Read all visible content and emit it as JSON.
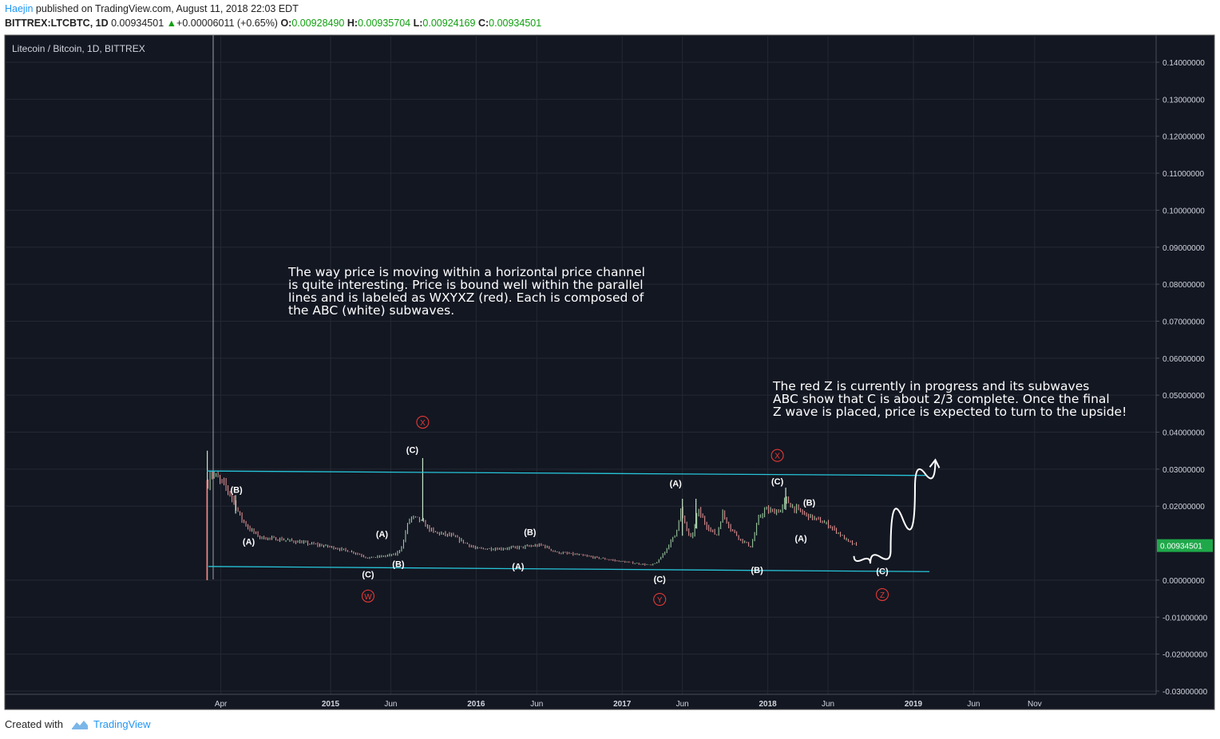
{
  "header": {
    "author": "Haejin",
    "published_text": "published on TradingView.com, August 11, 2018 22:03 EDT",
    "symbol": "BITTREX:LTCBTC, 1D",
    "last": "0.00934501",
    "change_arrow": "▲",
    "change": "+0.00006011 (+0.65%)",
    "o_label": "O:",
    "o": "0.00928490",
    "h_label": "H:",
    "h": "0.00935704",
    "l_label": "L:",
    "l": "0.00924169",
    "c_label": "C:",
    "c": "0.00934501"
  },
  "footer": {
    "created_with": "Created with",
    "brand": "TradingView"
  },
  "colors": {
    "background": "#131722",
    "channel": "#26c6da",
    "wave_red": "#e53935",
    "wave_white": "#ffffff",
    "price_tag": "#1fa84a",
    "up_candle": "#a5d6a7",
    "down_candle": "#ef9a9a"
  },
  "chart_data": {
    "type": "candlestick",
    "title": "Litecoin / Bitcoin, 1D, BITTREX",
    "ylim": [
      -0.03,
      0.145
    ],
    "y_ticks": [
      "0.14000000",
      "0.13000000",
      "0.12000000",
      "0.11000000",
      "0.10000000",
      "0.09000000",
      "0.08000000",
      "0.07000000",
      "0.06000000",
      "0.05000000",
      "0.04000000",
      "0.03000000",
      "0.02000000",
      "0.00000000",
      "-0.01000000",
      "-0.02000000",
      "-0.03000000"
    ],
    "y_tick_values": [
      0.14,
      0.13,
      0.12,
      0.11,
      0.1,
      0.09,
      0.08,
      0.07,
      0.06,
      0.05,
      0.04,
      0.03,
      0.02,
      0.0,
      -0.01,
      -0.02,
      -0.03
    ],
    "x_ticks": [
      {
        "label": "Apr",
        "date": "2014-04-01"
      },
      {
        "label": "2015",
        "date": "2015-01-01"
      },
      {
        "label": "Jun",
        "date": "2015-06-01"
      },
      {
        "label": "2016",
        "date": "2016-01-01"
      },
      {
        "label": "Jun",
        "date": "2016-06-01"
      },
      {
        "label": "2017",
        "date": "2017-01-01"
      },
      {
        "label": "Jun",
        "date": "2017-06-01"
      },
      {
        "label": "2018",
        "date": "2018-01-01"
      },
      {
        "label": "Jun",
        "date": "2018-06-01"
      },
      {
        "label": "2019",
        "date": "2019-01-01"
      },
      {
        "label": "Jun",
        "date": "2019-06-01"
      },
      {
        "label": "Nov",
        "date": "2019-11-01"
      }
    ],
    "last_price_label": "0.00934501",
    "price_path": [
      [
        "2014-02-28",
        0.026
      ],
      [
        "2014-03-05",
        0.029
      ],
      [
        "2014-03-20",
        0.028
      ],
      [
        "2014-04-15",
        0.025
      ],
      [
        "2014-05-05",
        0.021
      ],
      [
        "2014-05-20",
        0.017
      ],
      [
        "2014-06-10",
        0.014
      ],
      [
        "2014-07-10",
        0.0115
      ],
      [
        "2014-09-01",
        0.011
      ],
      [
        "2014-11-01",
        0.01
      ],
      [
        "2015-01-01",
        0.009
      ],
      [
        "2015-03-01",
        0.0075
      ],
      [
        "2015-04-05",
        0.006
      ],
      [
        "2015-05-15",
        0.0065
      ],
      [
        "2015-06-15",
        0.007
      ],
      [
        "2015-07-01",
        0.0095
      ],
      [
        "2015-07-10",
        0.014
      ],
      [
        "2015-07-20",
        0.017
      ],
      [
        "2015-08-10",
        0.0165
      ],
      [
        "2015-09-15",
        0.013
      ],
      [
        "2015-11-01",
        0.012
      ],
      [
        "2016-01-01",
        0.0085
      ],
      [
        "2016-03-01",
        0.0085
      ],
      [
        "2016-05-01",
        0.009
      ],
      [
        "2016-06-15",
        0.0095
      ],
      [
        "2016-07-20",
        0.0075
      ],
      [
        "2016-09-01",
        0.007
      ],
      [
        "2016-11-01",
        0.006
      ],
      [
        "2017-01-01",
        0.005
      ],
      [
        "2017-03-15",
        0.004
      ],
      [
        "2017-04-01",
        0.005
      ],
      [
        "2017-04-25",
        0.009
      ],
      [
        "2017-05-15",
        0.0125
      ],
      [
        "2017-05-28",
        0.019
      ],
      [
        "2017-06-10",
        0.014
      ],
      [
        "2017-06-25",
        0.011
      ],
      [
        "2017-07-10",
        0.019
      ],
      [
        "2017-07-30",
        0.015
      ],
      [
        "2017-08-25",
        0.012
      ],
      [
        "2017-09-10",
        0.018
      ],
      [
        "2017-09-30",
        0.014
      ],
      [
        "2017-10-25",
        0.011
      ],
      [
        "2017-11-20",
        0.009
      ],
      [
        "2017-12-10",
        0.017
      ],
      [
        "2017-12-25",
        0.019
      ],
      [
        "2018-01-15",
        0.0185
      ],
      [
        "2018-02-05",
        0.019
      ],
      [
        "2018-02-15",
        0.022
      ],
      [
        "2018-03-01",
        0.02
      ],
      [
        "2018-04-01",
        0.018
      ],
      [
        "2018-05-01",
        0.0165
      ],
      [
        "2018-06-01",
        0.015
      ],
      [
        "2018-06-25",
        0.013
      ],
      [
        "2018-07-20",
        0.0105
      ],
      [
        "2018-08-11",
        0.00934501
      ]
    ],
    "spikes": [
      {
        "date": "2014-02-26",
        "high": 0.035,
        "low": 0.0
      },
      {
        "date": "2014-05-08",
        "high": 0.023,
        "low": 0.018
      },
      {
        "date": "2015-08-20",
        "high": 0.033,
        "low": 0.016
      },
      {
        "date": "2017-06-01",
        "high": 0.022,
        "low": 0.012
      },
      {
        "date": "2017-07-05",
        "high": 0.022,
        "low": 0.014
      },
      {
        "date": "2018-02-15",
        "high": 0.025,
        "low": 0.019
      }
    ],
    "channel_lines": [
      {
        "start": [
          "2014-02-25",
          0.0295
        ],
        "end": [
          "2019-02-01",
          0.0283
        ]
      },
      {
        "start": [
          "2014-03-01",
          0.0037
        ],
        "end": [
          "2019-02-10",
          0.0023
        ]
      }
    ],
    "wave_labels_white": [
      {
        "text": "(B)",
        "date": "2014-05-10",
        "y": 0.0245
      },
      {
        "text": "(A)",
        "date": "2014-06-10",
        "y": 0.0105
      },
      {
        "text": "(C)",
        "date": "2015-04-05",
        "y": 0.0016
      },
      {
        "text": "(A)",
        "date": "2015-05-10",
        "y": 0.0125
      },
      {
        "text": "(B)",
        "date": "2015-06-20",
        "y": 0.0044
      },
      {
        "text": "(C)",
        "date": "2015-07-25",
        "y": 0.0353
      },
      {
        "text": "(B)",
        "date": "2016-05-15",
        "y": 0.013
      },
      {
        "text": "(A)",
        "date": "2016-04-15",
        "y": 0.0038
      },
      {
        "text": "(C)",
        "date": "2017-04-05",
        "y": 0.0003
      },
      {
        "text": "(A)",
        "date": "2017-05-15",
        "y": 0.0262
      },
      {
        "text": "(B)",
        "date": "2017-12-05",
        "y": 0.0028
      },
      {
        "text": "(C)",
        "date": "2018-01-25",
        "y": 0.0267
      },
      {
        "text": "(B)",
        "date": "2018-04-15",
        "y": 0.021
      },
      {
        "text": "(A)",
        "date": "2018-03-25",
        "y": 0.0113
      },
      {
        "text": "(C)",
        "date": "2018-10-15",
        "y": 0.0025
      }
    ],
    "wave_labels_red": [
      {
        "text": "W",
        "date": "2015-04-05",
        "y": -0.0043
      },
      {
        "text": "X",
        "date": "2015-08-20",
        "y": 0.0427
      },
      {
        "text": "Y",
        "date": "2017-04-05",
        "y": -0.0052
      },
      {
        "text": "X",
        "date": "2018-01-25",
        "y": 0.0337
      },
      {
        "text": "Z",
        "date": "2018-10-15",
        "y": -0.0039
      }
    ],
    "annotations": [
      {
        "lines": [
          "The way price is moving within a horizontal price channel",
          "is quite interesting. Price is bound well within the parallel",
          "lines and is labeled as WXYXZ (red). Each is composed of",
          "the ABC (white) subwaves."
        ]
      },
      {
        "lines": [
          "The red Z is currently in progress and its subwaves",
          "ABC show that C is about 2/3 complete. Once the final",
          "Z wave is placed, price is expected to turn to the upside!"
        ]
      }
    ],
    "projection_arrow": [
      [
        "2018-08-05",
        0.0065
      ],
      [
        "2018-09-15",
        0.0045
      ],
      [
        "2018-11-05",
        0.008
      ],
      [
        "2019-01-05",
        0.025
      ],
      [
        "2019-02-25",
        0.0325
      ]
    ]
  }
}
